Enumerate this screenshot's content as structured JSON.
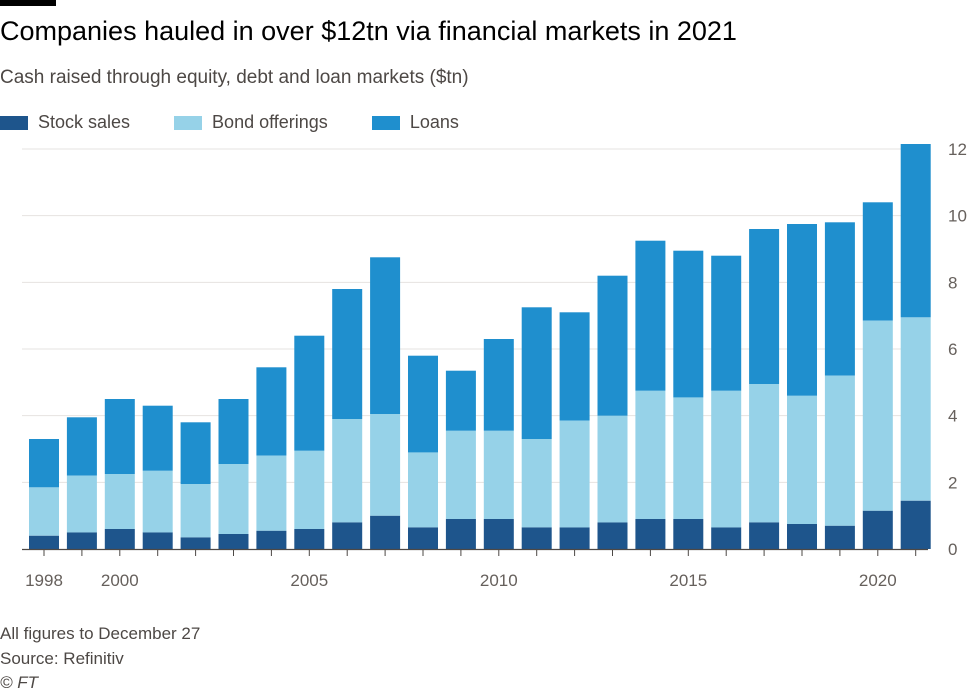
{
  "header": {
    "title": "Companies hauled in over $12tn via financial markets in 2021",
    "subtitle": "Cash raised through equity, debt and loan markets ($tn)"
  },
  "footer": {
    "note": "All figures to December 27",
    "source": "Source: Refinitiv",
    "credit": "© FT"
  },
  "colors": {
    "stock": "#1e558c",
    "bond": "#96d2e8",
    "loans": "#1f8fce",
    "grid": "#e6e3e0",
    "axis_text": "#66605c"
  },
  "chart_data": {
    "type": "bar",
    "stacked": true,
    "title": "Companies hauled in over $12tn via financial markets in 2021",
    "subtitle": "Cash raised through equity, debt and loan markets ($tn)",
    "xlabel": "",
    "ylabel": "",
    "ylim": [
      0,
      12
    ],
    "yticks": [
      0,
      2,
      4,
      6,
      8,
      10,
      12
    ],
    "y_axis_side": "right",
    "grid": true,
    "legend_position": "top-left",
    "categories": [
      "1998",
      "1999",
      "2000",
      "2001",
      "2002",
      "2003",
      "2004",
      "2005",
      "2006",
      "2007",
      "2008",
      "2009",
      "2010",
      "2011",
      "2012",
      "2013",
      "2014",
      "2015",
      "2016",
      "2017",
      "2018",
      "2019",
      "2020",
      "2021"
    ],
    "xtick_labels": [
      "1998",
      "2000",
      "2005",
      "2010",
      "2015",
      "2020"
    ],
    "series": [
      {
        "name": "Stock sales",
        "values": [
          0.4,
          0.5,
          0.6,
          0.5,
          0.35,
          0.45,
          0.55,
          0.6,
          0.8,
          1.0,
          0.65,
          0.9,
          0.9,
          0.65,
          0.65,
          0.8,
          0.9,
          0.9,
          0.65,
          0.8,
          0.75,
          0.7,
          1.15,
          1.45
        ]
      },
      {
        "name": "Bond offerings",
        "values": [
          1.45,
          1.7,
          1.65,
          1.85,
          1.6,
          2.1,
          2.25,
          2.35,
          3.1,
          3.05,
          2.25,
          2.65,
          2.65,
          2.65,
          3.2,
          3.2,
          3.85,
          3.65,
          4.1,
          4.15,
          3.85,
          4.5,
          5.7,
          5.5
        ]
      },
      {
        "name": "Loans",
        "values": [
          1.45,
          1.75,
          2.25,
          1.95,
          1.85,
          1.95,
          2.65,
          3.45,
          3.9,
          4.7,
          2.9,
          1.8,
          2.75,
          3.95,
          3.25,
          4.2,
          4.5,
          4.4,
          4.05,
          4.65,
          5.15,
          4.6,
          3.55,
          5.2
        ]
      }
    ]
  }
}
